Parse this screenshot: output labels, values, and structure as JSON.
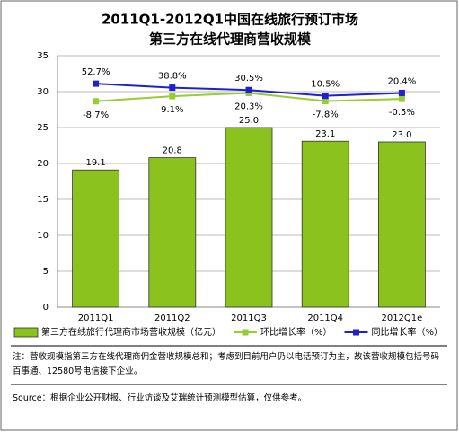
{
  "chart_data": {
    "type": "bar",
    "title": "2011Q1-2012Q1中国在线旅行预订市场",
    "subtitle": "第三方在线代理商营收规模",
    "categories": [
      "2011Q1",
      "2011Q2",
      "2011Q3",
      "2011Q4",
      "2012Q1e"
    ],
    "series": [
      {
        "name": "第三方在线旅行代理商市场营收规模（亿元）",
        "type": "bar",
        "color": "#8cc21e",
        "values": [
          19.1,
          20.8,
          25.0,
          23.1,
          23.0
        ],
        "value_labels": [
          "19.1",
          "20.8",
          "25.0",
          "23.1",
          "23.0"
        ]
      },
      {
        "name": "环比增长率（%）",
        "type": "line",
        "axis": "y2",
        "color": "#99cc33",
        "values": [
          -8.7,
          9.1,
          20.3,
          -7.8,
          -0.5
        ],
        "value_labels": [
          "-8.7%",
          "9.1%",
          "20.3%",
          "-7.8%",
          "-0.5%"
        ]
      },
      {
        "name": "同比增长率（%）",
        "type": "line",
        "axis": "y2",
        "color": "#2020d0",
        "values": [
          52.7,
          38.8,
          30.5,
          10.5,
          20.4
        ],
        "value_labels": [
          "52.7%",
          "38.8%",
          "30.5%",
          "10.5%",
          "20.4%"
        ]
      }
    ],
    "ylim": [
      0,
      35
    ],
    "yticks": [
      0,
      5,
      10,
      15,
      20,
      25,
      30,
      35
    ],
    "y2lim": [
      -725,
      150
    ],
    "grid": true,
    "legend": "bottom",
    "note": "注：营收规模指第三方在线代理商佣金营收规模总和；考虑到目前用户仍以电话预订为主，故该营收规模包括号码百事通、12580号电信接下企业。",
    "source": "Source：根据企业公开财报、行业访谈及艾瑞统计预测模型估算，仅供参考。"
  }
}
